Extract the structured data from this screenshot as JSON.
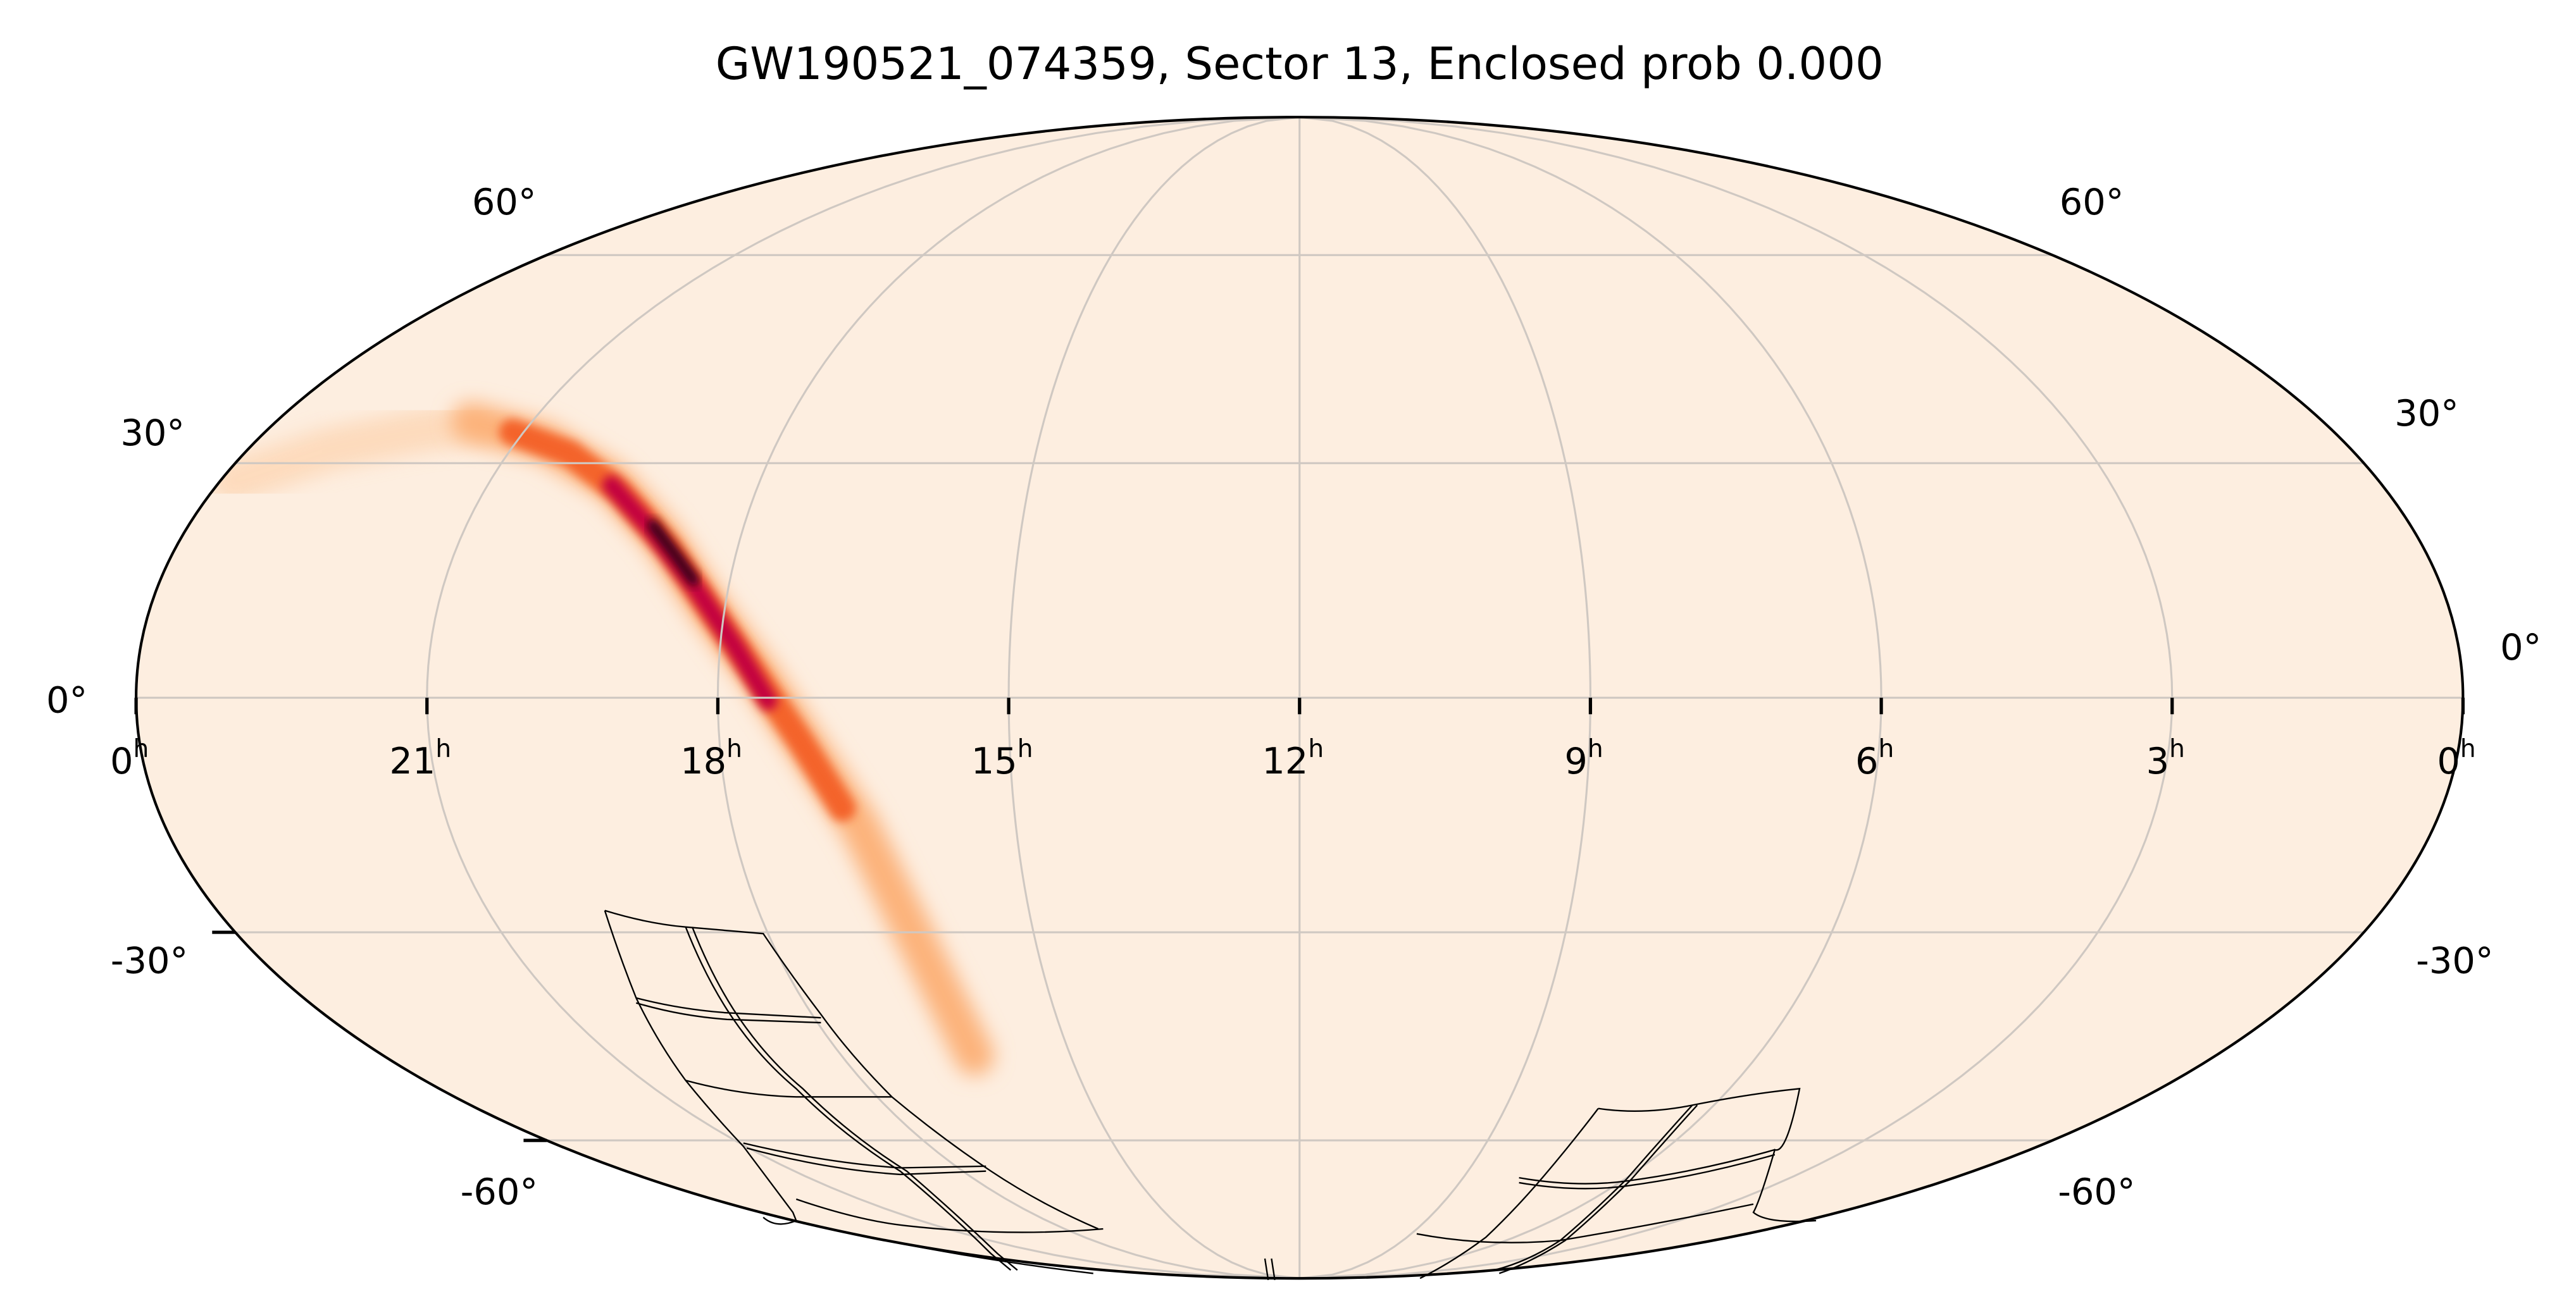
{
  "chart_data": {
    "type": "heatmap",
    "projection": "mollweide",
    "title": "GW190521_074359, Sector 13, Enclosed prob 0.000",
    "event": "GW190521_074359",
    "sector": 13,
    "enclosed_probability": 0.0,
    "ra_ticks": [
      {
        "hours": 24,
        "label": "0",
        "sup": "h"
      },
      {
        "hours": 21,
        "label": "21",
        "sup": "h"
      },
      {
        "hours": 18,
        "label": "18",
        "sup": "h"
      },
      {
        "hours": 15,
        "label": "15",
        "sup": "h"
      },
      {
        "hours": 12,
        "label": "12",
        "sup": "h"
      },
      {
        "hours": 9,
        "label": "9",
        "sup": "h"
      },
      {
        "hours": 6,
        "label": "6",
        "sup": "h"
      },
      {
        "hours": 3,
        "label": "3",
        "sup": "h"
      },
      {
        "hours": 0,
        "label": "0",
        "sup": "h"
      }
    ],
    "dec_ticks": [
      {
        "deg": 60,
        "label": "60°"
      },
      {
        "deg": 30,
        "label": "30°"
      },
      {
        "deg": 0,
        "label": "0°"
      },
      {
        "deg": -30,
        "label": "-30°"
      },
      {
        "deg": -60,
        "label": "-60°"
      }
    ],
    "grid": true,
    "colors": {
      "background": "#fdeee0",
      "grid": "#cfc8c2",
      "peak": "#1a0010",
      "high": "#b3003d",
      "mid": "#f2522a",
      "low": "#fba35f"
    }
  }
}
